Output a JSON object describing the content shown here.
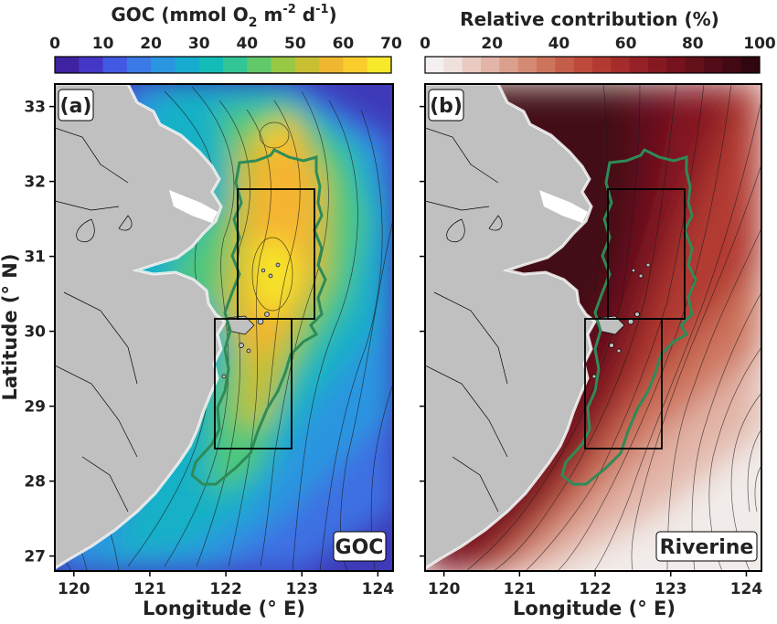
{
  "figure": {
    "colorbars": [
      {
        "title_main": "GOC (mmol O",
        "title_sub": "2",
        "title_mid": " m",
        "title_sup1": "-2",
        "title_mid2": " d",
        "title_sup2": "-1",
        "title_end": ")",
        "ticks": [
          "0",
          "10",
          "20",
          "30",
          "40",
          "50",
          "60",
          "70"
        ],
        "colors": [
          "#3f22a0",
          "#4436c6",
          "#4159e3",
          "#3a7ae6",
          "#2a95e0",
          "#17abd0",
          "#13bcb6",
          "#32c595",
          "#62c96a",
          "#98c844",
          "#c8bf33",
          "#efb72f",
          "#fbcd2c",
          "#f6e82a"
        ]
      },
      {
        "title": "Relative contribution (%)",
        "ticks": [
          "0",
          "20",
          "40",
          "60",
          "80",
          "100"
        ],
        "colors": [
          "#f4f0ef",
          "#f0e0dc",
          "#e9cbc3",
          "#e2b5a8",
          "#dba08d",
          "#d48a73",
          "#cd745d",
          "#c55e49",
          "#bd4a3a",
          "#b23a31",
          "#a42c2a",
          "#952026",
          "#861822",
          "#75121e",
          "#63101b",
          "#520c17",
          "#420914",
          "#320610"
        ]
      }
    ],
    "panels": [
      {
        "label": "(a)",
        "tag": "GOC",
        "xlabel": "Longitude (° E)",
        "xticks": [
          "120",
          "121",
          "122",
          "123",
          "124"
        ]
      },
      {
        "label": "(b)",
        "tag": "Riverine",
        "xlabel": "Longitude (° E)",
        "xticks": [
          "120",
          "121",
          "122",
          "123",
          "124"
        ]
      }
    ],
    "ylabel": "Latitude (° N)",
    "yticks": [
      "27",
      "28",
      "29",
      "30",
      "31",
      "32",
      "33"
    ],
    "colors": {
      "land": "#c0c0c0",
      "boundary": "#2e8b57",
      "box": "#000000"
    }
  }
}
